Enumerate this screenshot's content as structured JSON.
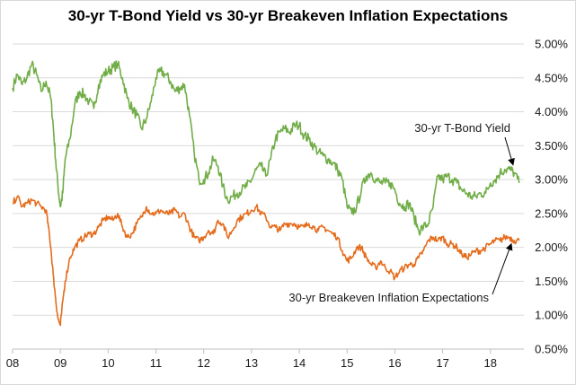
{
  "chart_data": {
    "type": "line",
    "title": "30-yr T-Bond Yield vs 30-yr Breakeven Inflation Expectations",
    "xlabel": "",
    "ylabel": "",
    "x_tick_labels": [
      "08",
      "09",
      "10",
      "11",
      "12",
      "13",
      "14",
      "15",
      "16",
      "17",
      "18"
    ],
    "x_tick_years": [
      2008,
      2009,
      2010,
      2011,
      2012,
      2013,
      2014,
      2015,
      2016,
      2017,
      2018
    ],
    "xlim": [
      2008.0,
      2018.7
    ],
    "ylim": [
      0.5,
      5.0
    ],
    "y_ticks": [
      0.5,
      1.0,
      1.5,
      2.0,
      2.5,
      3.0,
      3.5,
      4.0,
      4.5,
      5.0
    ],
    "y_tick_labels": [
      "0.50%",
      "1.00%",
      "1.50%",
      "2.00%",
      "2.50%",
      "3.00%",
      "3.50%",
      "4.00%",
      "4.50%",
      "5.00%"
    ],
    "y_axis_side": "right",
    "grid": true,
    "legend": "none",
    "series": [
      {
        "label": "30-yr T-Bond Yield",
        "color": "#70ad47",
        "x": [
          2008.0,
          2008.1,
          2008.2,
          2008.3,
          2008.4,
          2008.5,
          2008.6,
          2008.7,
          2008.8,
          2008.85,
          2008.9,
          2008.95,
          2009.0,
          2009.05,
          2009.1,
          2009.2,
          2009.3,
          2009.4,
          2009.5,
          2009.6,
          2009.7,
          2009.8,
          2009.9,
          2010.0,
          2010.1,
          2010.2,
          2010.3,
          2010.4,
          2010.5,
          2010.6,
          2010.7,
          2010.8,
          2010.9,
          2011.0,
          2011.1,
          2011.2,
          2011.3,
          2011.4,
          2011.5,
          2011.6,
          2011.7,
          2011.8,
          2011.9,
          2012.0,
          2012.1,
          2012.2,
          2012.3,
          2012.4,
          2012.5,
          2012.6,
          2012.7,
          2012.8,
          2012.9,
          2013.0,
          2013.1,
          2013.2,
          2013.3,
          2013.4,
          2013.5,
          2013.6,
          2013.7,
          2013.8,
          2013.9,
          2014.0,
          2014.1,
          2014.2,
          2014.3,
          2014.4,
          2014.5,
          2014.6,
          2014.7,
          2014.8,
          2014.9,
          2015.0,
          2015.1,
          2015.2,
          2015.3,
          2015.4,
          2015.5,
          2015.6,
          2015.7,
          2015.8,
          2015.9,
          2016.0,
          2016.1,
          2016.2,
          2016.3,
          2016.4,
          2016.5,
          2016.6,
          2016.7,
          2016.8,
          2016.9,
          2017.0,
          2017.1,
          2017.2,
          2017.3,
          2017.4,
          2017.5,
          2017.6,
          2017.7,
          2017.8,
          2017.9,
          2018.0,
          2018.1,
          2018.2,
          2018.3,
          2018.4,
          2018.5,
          2018.6
        ],
        "values": [
          4.35,
          4.55,
          4.4,
          4.5,
          4.7,
          4.55,
          4.3,
          4.45,
          4.2,
          3.8,
          3.3,
          2.9,
          2.6,
          2.8,
          3.3,
          3.6,
          4.1,
          4.3,
          4.25,
          4.15,
          4.05,
          4.4,
          4.55,
          4.6,
          4.65,
          4.7,
          4.5,
          4.2,
          4.05,
          3.95,
          3.75,
          3.9,
          4.15,
          4.5,
          4.6,
          4.55,
          4.45,
          4.3,
          4.35,
          4.4,
          3.95,
          3.4,
          3.0,
          3.0,
          3.1,
          3.3,
          3.2,
          2.9,
          2.7,
          2.75,
          2.8,
          2.85,
          2.9,
          3.0,
          3.15,
          3.2,
          3.05,
          3.3,
          3.6,
          3.7,
          3.75,
          3.7,
          3.8,
          3.8,
          3.65,
          3.6,
          3.5,
          3.4,
          3.35,
          3.3,
          3.25,
          3.15,
          3.0,
          2.6,
          2.5,
          2.6,
          2.85,
          3.05,
          3.1,
          3.0,
          2.95,
          2.95,
          2.95,
          2.85,
          2.65,
          2.6,
          2.65,
          2.45,
          2.25,
          2.3,
          2.35,
          2.6,
          3.05,
          3.0,
          3.05,
          3.0,
          2.95,
          2.85,
          2.8,
          2.75,
          2.75,
          2.8,
          2.8,
          2.95,
          3.0,
          3.1,
          3.15,
          3.15,
          3.1,
          2.95
        ]
      },
      {
        "label": "30-yr Breakeven Inflation Expectations",
        "color": "#e46c1c",
        "x": [
          2008.0,
          2008.1,
          2008.2,
          2008.3,
          2008.4,
          2008.5,
          2008.6,
          2008.7,
          2008.75,
          2008.8,
          2008.85,
          2008.9,
          2008.95,
          2009.0,
          2009.05,
          2009.1,
          2009.2,
          2009.3,
          2009.4,
          2009.5,
          2009.6,
          2009.7,
          2009.8,
          2009.9,
          2010.0,
          2010.1,
          2010.2,
          2010.3,
          2010.4,
          2010.5,
          2010.6,
          2010.7,
          2010.8,
          2010.9,
          2011.0,
          2011.1,
          2011.2,
          2011.3,
          2011.4,
          2011.5,
          2011.6,
          2011.7,
          2011.8,
          2011.9,
          2012.0,
          2012.1,
          2012.2,
          2012.3,
          2012.4,
          2012.5,
          2012.6,
          2012.7,
          2012.8,
          2012.9,
          2013.0,
          2013.1,
          2013.2,
          2013.3,
          2013.4,
          2013.5,
          2013.6,
          2013.7,
          2013.8,
          2013.9,
          2014.0,
          2014.1,
          2014.2,
          2014.3,
          2014.4,
          2014.5,
          2014.6,
          2014.7,
          2014.8,
          2014.9,
          2015.0,
          2015.1,
          2015.2,
          2015.3,
          2015.4,
          2015.5,
          2015.6,
          2015.7,
          2015.8,
          2015.9,
          2016.0,
          2016.1,
          2016.2,
          2016.3,
          2016.4,
          2016.5,
          2016.6,
          2016.7,
          2016.8,
          2016.9,
          2017.0,
          2017.1,
          2017.2,
          2017.3,
          2017.4,
          2017.5,
          2017.6,
          2017.7,
          2017.8,
          2017.9,
          2018.0,
          2018.1,
          2018.2,
          2018.3,
          2018.4,
          2018.5,
          2018.6
        ],
        "values": [
          2.65,
          2.75,
          2.6,
          2.65,
          2.7,
          2.65,
          2.6,
          2.55,
          2.3,
          2.0,
          1.6,
          1.25,
          0.95,
          0.85,
          1.2,
          1.5,
          1.85,
          2.0,
          2.1,
          2.15,
          2.2,
          2.2,
          2.3,
          2.4,
          2.45,
          2.4,
          2.5,
          2.3,
          2.15,
          2.2,
          2.35,
          2.45,
          2.6,
          2.5,
          2.5,
          2.55,
          2.5,
          2.5,
          2.55,
          2.45,
          2.5,
          2.3,
          2.15,
          2.1,
          2.15,
          2.25,
          2.2,
          2.4,
          2.35,
          2.15,
          2.25,
          2.4,
          2.45,
          2.5,
          2.55,
          2.6,
          2.5,
          2.45,
          2.3,
          2.3,
          2.25,
          2.35,
          2.35,
          2.35,
          2.3,
          2.3,
          2.35,
          2.3,
          2.25,
          2.3,
          2.25,
          2.2,
          2.15,
          1.95,
          1.8,
          1.85,
          2.0,
          2.0,
          1.85,
          1.75,
          1.7,
          1.8,
          1.7,
          1.65,
          1.55,
          1.65,
          1.7,
          1.75,
          1.75,
          1.85,
          1.95,
          2.1,
          2.15,
          2.1,
          2.15,
          2.05,
          2.05,
          2.0,
          1.9,
          1.85,
          1.9,
          1.95,
          1.95,
          2.0,
          2.05,
          2.1,
          2.1,
          2.15,
          2.15,
          2.1,
          2.1
        ]
      }
    ],
    "annotations": [
      {
        "text": "30-yr T-Bond Yield",
        "series": 0,
        "point_x": 2018.45,
        "point_y": 3.15
      },
      {
        "text": "30-yr Breakeven Inflation Expectations",
        "series": 1,
        "point_x": 2018.45,
        "point_y": 2.12
      }
    ]
  }
}
